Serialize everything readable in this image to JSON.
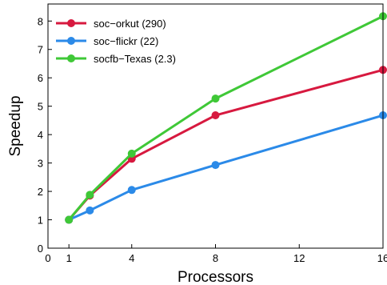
{
  "chart_data": {
    "type": "line",
    "xlabel": "Processors",
    "ylabel": "Speedup",
    "xlim": [
      0,
      16
    ],
    "ylim": [
      0,
      8.6
    ],
    "xticks": [
      0,
      1,
      4,
      8,
      12,
      16
    ],
    "yticks": [
      0,
      1,
      2,
      3,
      4,
      5,
      6,
      7,
      8
    ],
    "grid": false,
    "legend_position": "top-left",
    "series": [
      {
        "name": "soc−orkut (290)",
        "color": "#d7193f",
        "x": [
          1,
          2,
          4,
          8,
          16
        ],
        "y": [
          1.0,
          1.85,
          3.15,
          4.68,
          6.28
        ]
      },
      {
        "name": "soc−flickr (22)",
        "color": "#2b8ae8",
        "x": [
          1,
          2,
          4,
          8,
          16
        ],
        "y": [
          1.0,
          1.33,
          2.05,
          2.93,
          4.68
        ]
      },
      {
        "name": "socfb−Texas (2.3)",
        "color": "#3fc837",
        "x": [
          1,
          2,
          4,
          8,
          16
        ],
        "y": [
          1.0,
          1.88,
          3.33,
          5.27,
          8.17
        ]
      }
    ]
  }
}
